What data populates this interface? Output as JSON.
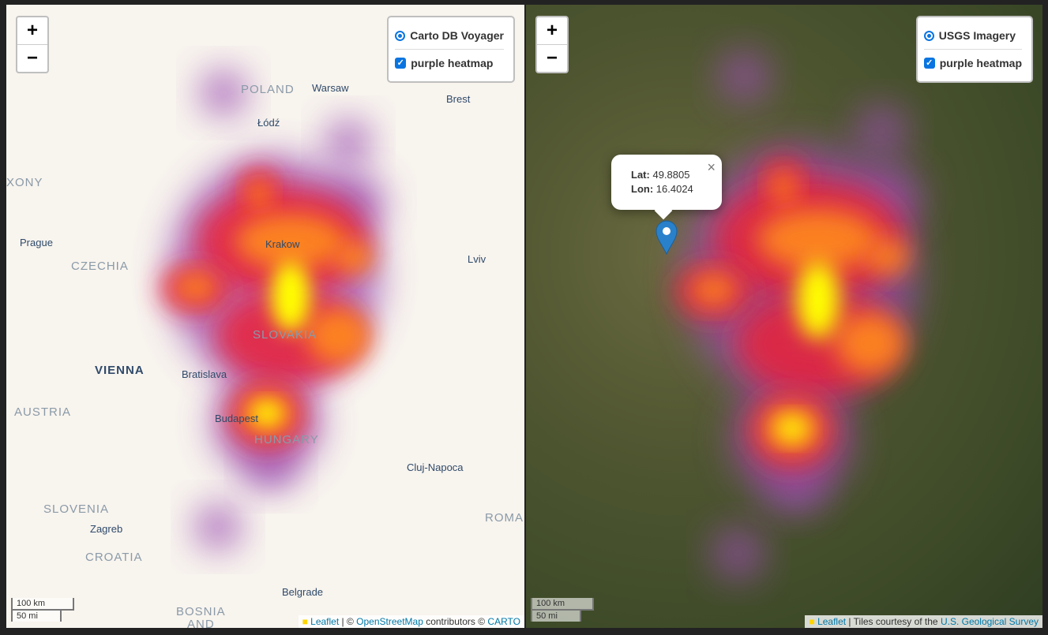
{
  "maps": [
    {
      "zoom_in": "+",
      "zoom_out": "−",
      "layers": {
        "base": "Carto DB Voyager",
        "overlay": "purple heatmap"
      },
      "places": [
        "POLAND",
        "Warsaw",
        "Brest",
        "Łódź",
        "XONY",
        "Prague",
        "CZECHIA",
        "Krakow",
        "Lviv",
        "SLOVAKIA",
        "VIENNA",
        "Bratislava",
        "AUSTRIA",
        "Budapest",
        "HUNGARY",
        "Cluj-Napoca",
        "SLOVENIA",
        "ROMA",
        "Zagreb",
        "CROATIA",
        "Belgrade",
        "BOSNIA",
        "AND"
      ],
      "scale": {
        "metric": "100 km",
        "imperial": "50 mi"
      },
      "attribution": [
        "Leaflet",
        " | © ",
        "OpenStreetMap",
        " contributors © ",
        "CARTO"
      ]
    },
    {
      "zoom_in": "+",
      "zoom_out": "−",
      "layers": {
        "base": "USGS Imagery",
        "overlay": "purple heatmap"
      },
      "popup": {
        "lat_label": "Lat:",
        "lat": 49.8805,
        "lon_label": "Lon:",
        "lon": 16.4024,
        "close": "×"
      },
      "scale": {
        "metric": "100 km",
        "imperial": "50 mi"
      },
      "attribution": [
        "Leaflet",
        " | Tiles courtesy of the ",
        "U.S. Geological Survey"
      ]
    }
  ]
}
